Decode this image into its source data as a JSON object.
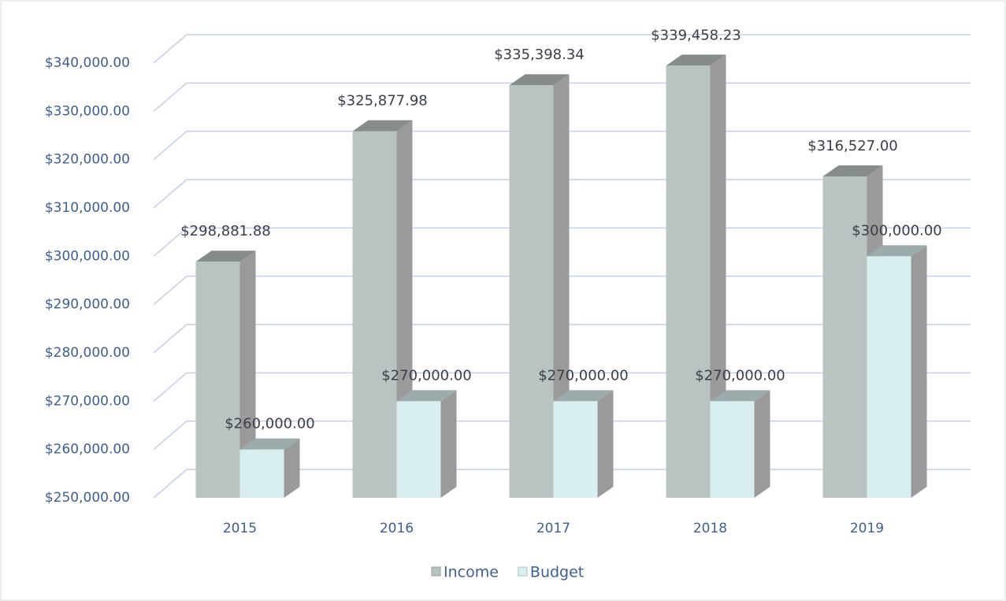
{
  "chart_data": {
    "type": "bar3d",
    "categories": [
      "2015",
      "2016",
      "2017",
      "2018",
      "2019"
    ],
    "series": [
      {
        "name": "Income",
        "color": "#b9c3c1",
        "values": [
          298881.88,
          325877.98,
          335398.34,
          339458.23,
          316527.0
        ],
        "value_labels": [
          "$298,881.88",
          "$325,877.98",
          "$335,398.34",
          "$339,458.23",
          "$316,527.00"
        ]
      },
      {
        "name": "Budget",
        "color": "#d9eeee",
        "values": [
          260000,
          270000,
          270000,
          270000,
          300000
        ],
        "value_labels": [
          "$260,000.00",
          "$270,000.00",
          "$270,000.00",
          "$270,000.00",
          "$300,000.00"
        ]
      }
    ],
    "ylim": [
      250000,
      340000
    ],
    "yticks": [
      {
        "value": 250000,
        "label": "$250,000.00"
      },
      {
        "value": 260000,
        "label": "$260,000.00"
      },
      {
        "value": 270000,
        "label": "$270,000.00"
      },
      {
        "value": 280000,
        "label": "$280,000.00"
      },
      {
        "value": 290000,
        "label": "$290,000.00"
      },
      {
        "value": 300000,
        "label": "$300,000.00"
      },
      {
        "value": 310000,
        "label": "$310,000.00"
      },
      {
        "value": 320000,
        "label": "$320,000.00"
      },
      {
        "value": 330000,
        "label": "$330,000.00"
      },
      {
        "value": 340000,
        "label": "$340,000.00"
      }
    ],
    "grid": true,
    "legend": "bottom"
  }
}
